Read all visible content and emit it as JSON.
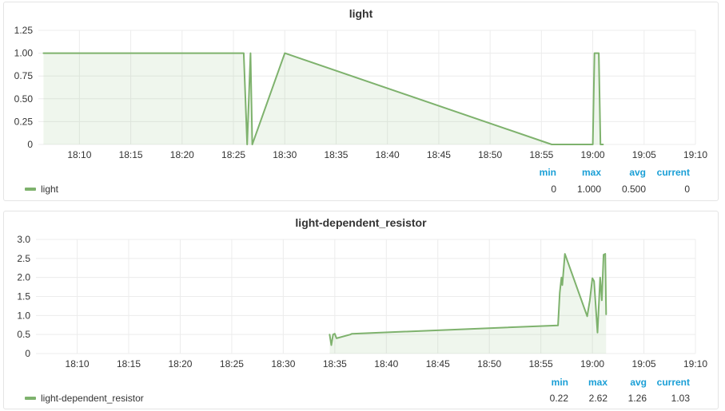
{
  "panels": [
    {
      "title": "light",
      "legend": {
        "headers": {
          "min": "min",
          "max": "max",
          "avg": "avg",
          "current": "current"
        },
        "series_name": "light",
        "values": {
          "min": "0",
          "max": "1.000",
          "avg": "0.500",
          "current": "0"
        }
      }
    },
    {
      "title": "light-dependent_resistor",
      "legend": {
        "headers": {
          "min": "min",
          "max": "max",
          "avg": "avg",
          "current": "current"
        },
        "series_name": "light-dependent_resistor",
        "values": {
          "min": "0.22",
          "max": "2.62",
          "avg": "1.26",
          "current": "1.03"
        }
      }
    }
  ],
  "chart_data": [
    {
      "type": "area",
      "title": "light",
      "xlabel": "",
      "ylabel": "",
      "x_unit": "time of day (hh:mm)",
      "xlim": [
        "18:06",
        "19:10"
      ],
      "ylim": [
        0,
        1.25
      ],
      "x_ticks": [
        "18:10",
        "18:15",
        "18:20",
        "18:25",
        "18:30",
        "18:35",
        "18:40",
        "18:45",
        "18:50",
        "18:55",
        "19:00",
        "19:05",
        "19:10"
      ],
      "y_ticks": [
        "0",
        "0.25",
        "0.50",
        "0.75",
        "1.00",
        "1.25"
      ],
      "y_tick_values": [
        0,
        0.25,
        0.5,
        0.75,
        1.0,
        1.25
      ],
      "grid": true,
      "legend_position": "bottom-left",
      "series": [
        {
          "name": "light",
          "color": "#7eb26d",
          "points": [
            [
              "18:06:30",
              1.0
            ],
            [
              "18:26:00",
              1.0
            ],
            [
              "18:26:20",
              0.0
            ],
            [
              "18:26:40",
              1.0
            ],
            [
              "18:26:50",
              0.0
            ],
            [
              "18:30:00",
              1.0
            ],
            [
              "18:56:00",
              0.0
            ],
            [
              "19:00:00",
              0.0
            ],
            [
              "19:00:10",
              1.0
            ],
            [
              "19:00:35",
              1.0
            ],
            [
              "19:00:45",
              0.0
            ],
            [
              "19:01:00",
              0.0
            ]
          ]
        }
      ]
    },
    {
      "type": "area",
      "title": "light-dependent_resistor",
      "xlabel": "",
      "ylabel": "",
      "x_unit": "time of day (hh:mm)",
      "xlim": [
        "18:06",
        "19:10"
      ],
      "ylim": [
        0,
        3.0
      ],
      "x_ticks": [
        "18:10",
        "18:15",
        "18:20",
        "18:25",
        "18:30",
        "18:35",
        "18:40",
        "18:45",
        "18:50",
        "18:55",
        "19:00",
        "19:05",
        "19:10"
      ],
      "y_ticks": [
        "0",
        "0.5",
        "1.0",
        "1.5",
        "2.0",
        "2.5",
        "3.0"
      ],
      "y_tick_values": [
        0,
        0.5,
        1.0,
        1.5,
        2.0,
        2.5,
        3.0
      ],
      "grid": true,
      "legend_position": "bottom-left",
      "series": [
        {
          "name": "light-dependent_resistor",
          "color": "#7eb26d",
          "points": [
            [
              "18:34:30",
              0.5
            ],
            [
              "18:34:40",
              0.22
            ],
            [
              "18:34:50",
              0.5
            ],
            [
              "18:35:00",
              0.52
            ],
            [
              "18:35:10",
              0.4
            ],
            [
              "18:36:30",
              0.5
            ],
            [
              "18:36:40",
              0.52
            ],
            [
              "18:56:40",
              0.74
            ],
            [
              "18:56:50",
              1.6
            ],
            [
              "18:57:00",
              2.0
            ],
            [
              "18:57:05",
              1.8
            ],
            [
              "18:57:20",
              2.62
            ],
            [
              "18:59:30",
              0.98
            ],
            [
              "18:59:45",
              1.4
            ],
            [
              "19:00:00",
              1.98
            ],
            [
              "19:00:10",
              1.9
            ],
            [
              "19:00:30",
              0.55
            ],
            [
              "19:00:45",
              2.0
            ],
            [
              "19:00:55",
              1.4
            ],
            [
              "19:01:05",
              2.6
            ],
            [
              "19:01:15",
              2.62
            ],
            [
              "19:01:20",
              1.03
            ]
          ]
        }
      ]
    }
  ]
}
